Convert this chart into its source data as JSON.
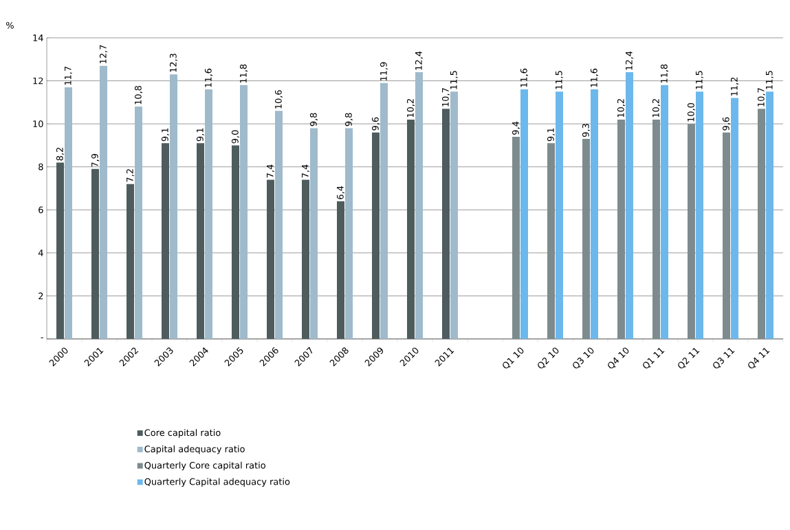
{
  "chart_data": {
    "type": "bar",
    "ylabel": "%",
    "categories": [
      "2000",
      "2001",
      "2002",
      "2003",
      "2004",
      "2005",
      "2006",
      "2007",
      "2008",
      "2009",
      "2010",
      "2011",
      null,
      "Q1 10",
      "Q2 10",
      "Q3 10",
      "Q4 10",
      "Q1 11",
      "Q2 11",
      "Q3 11",
      "Q4 11"
    ],
    "series": [
      {
        "name": "Core capital ratio",
        "color": "#4e5c5e",
        "values": [
          8.2,
          7.9,
          7.2,
          9.1,
          9.1,
          9.0,
          7.4,
          7.4,
          6.4,
          9.6,
          10.2,
          10.7,
          null,
          null,
          null,
          null,
          null,
          null,
          null,
          null,
          null
        ],
        "value_labels": [
          "8,2",
          "7,9",
          "7,2",
          "9,1",
          "9,1",
          "9,0",
          "7,4",
          "7,4",
          "6,4",
          "9,6",
          "10,2",
          "10,7",
          null,
          null,
          null,
          null,
          null,
          null,
          null,
          null,
          null
        ]
      },
      {
        "name": "Capital adequacy ratio",
        "color": "#9fbacb",
        "values": [
          11.7,
          12.7,
          10.8,
          12.3,
          11.6,
          11.8,
          10.6,
          9.8,
          9.8,
          11.9,
          12.4,
          11.5,
          null,
          null,
          null,
          null,
          null,
          null,
          null,
          null,
          null
        ],
        "value_labels": [
          "11,7",
          "12,7",
          "10,8",
          "12,3",
          "11,6",
          "11,8",
          "10,6",
          "9,8",
          "9,8",
          "11,9",
          "12,4",
          "11,5",
          null,
          null,
          null,
          null,
          null,
          null,
          null,
          null,
          null
        ]
      },
      {
        "name": "Quarterly Core capital ratio",
        "color": "#7d8b8e",
        "values": [
          null,
          null,
          null,
          null,
          null,
          null,
          null,
          null,
          null,
          null,
          null,
          null,
          null,
          9.4,
          9.1,
          9.3,
          10.2,
          10.2,
          10.0,
          9.6,
          10.7
        ],
        "value_labels": [
          null,
          null,
          null,
          null,
          null,
          null,
          null,
          null,
          null,
          null,
          null,
          null,
          null,
          "9,4",
          "9,1",
          "9,3",
          "10,2",
          "10,2",
          "10,0",
          "9,6",
          "10,7"
        ]
      },
      {
        "name": "Quarterly Capital adequacy ratio",
        "color": "#6cb8ec",
        "values": [
          null,
          null,
          null,
          null,
          null,
          null,
          null,
          null,
          null,
          null,
          null,
          null,
          null,
          11.6,
          11.5,
          11.6,
          12.4,
          11.8,
          11.5,
          11.2,
          11.5
        ],
        "value_labels": [
          null,
          null,
          null,
          null,
          null,
          null,
          null,
          null,
          null,
          null,
          null,
          null,
          null,
          "11,6",
          "11,5",
          "11,6",
          "12,4",
          "11,8",
          "11,5",
          "11,2",
          "11,5"
        ]
      }
    ],
    "ylim": [
      0,
      14
    ],
    "yticks": [
      {
        "value": 0,
        "label": "-"
      },
      2,
      4,
      6,
      8,
      10,
      12,
      14
    ],
    "grid": "y",
    "legend": "bottom"
  }
}
